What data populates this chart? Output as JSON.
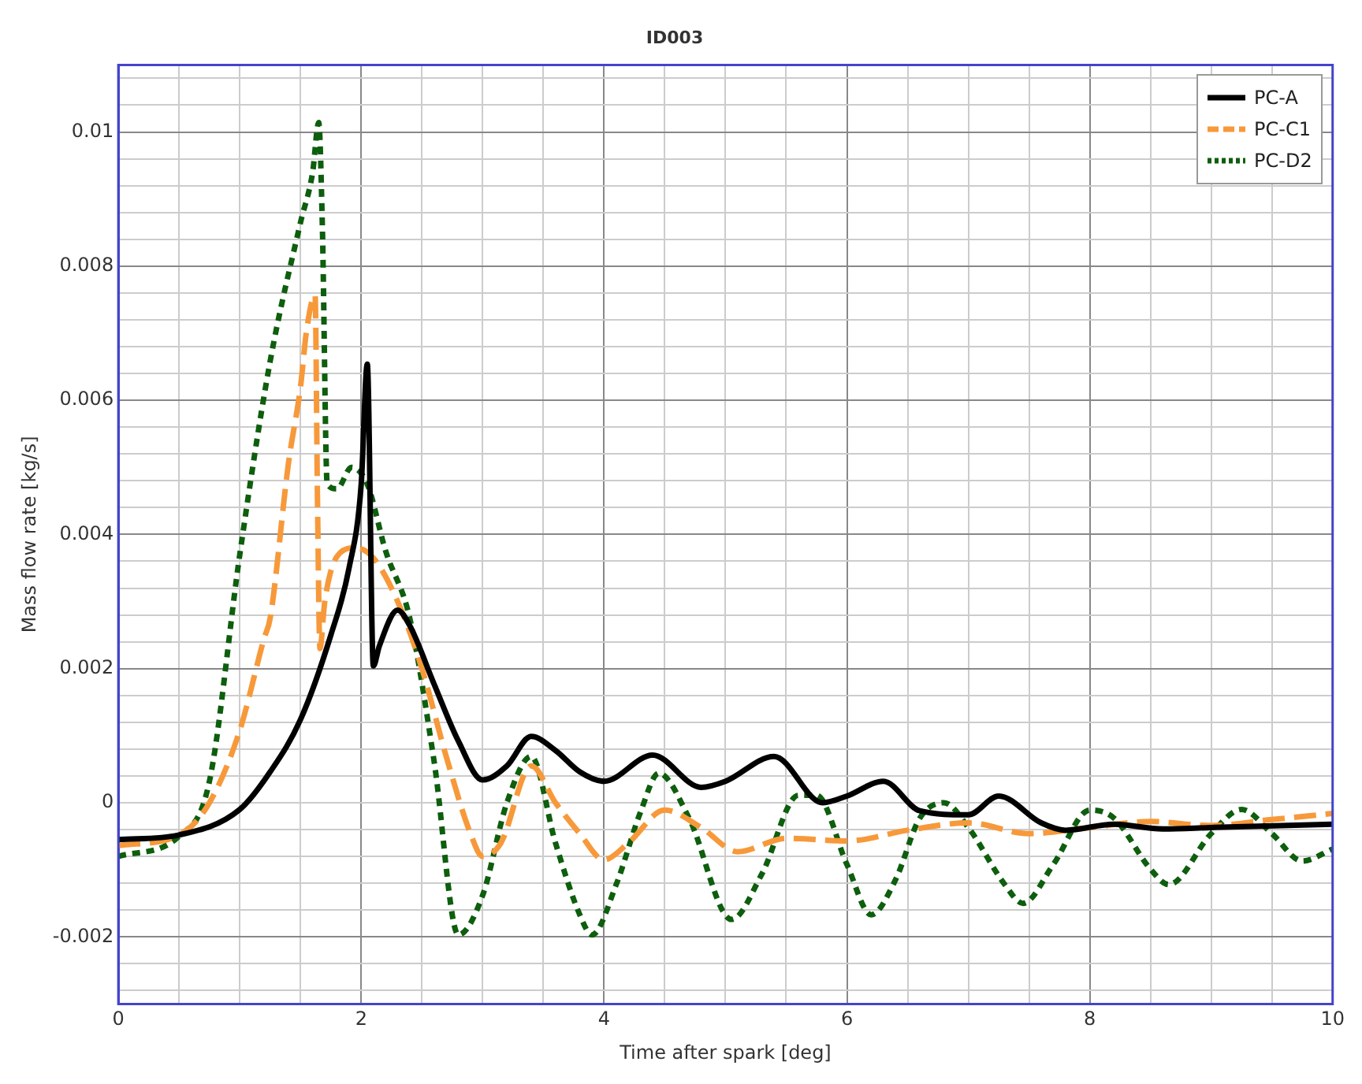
{
  "chart_data": {
    "type": "line",
    "title": "ID003",
    "xlabel": "Time after spark [deg]",
    "ylabel": "Mass flow rate [kg/s]",
    "xlim": [
      0,
      10
    ],
    "xticks": [
      0,
      {
        "value": 0.5,
        "label": null
      },
      {
        "value": 1,
        "label": null
      },
      {
        "value": 1.5,
        "label": null
      },
      2,
      {
        "value": 2.5,
        "label": null
      },
      {
        "value": 3,
        "label": null
      },
      {
        "value": 3.5,
        "label": null
      },
      4,
      {
        "value": 4.5,
        "label": null
      },
      {
        "value": 5,
        "label": null
      },
      {
        "value": 5.5,
        "label": null
      },
      6,
      {
        "value": 6.5,
        "label": null
      },
      {
        "value": 7,
        "label": null
      },
      {
        "value": 7.5,
        "label": null
      },
      8,
      {
        "value": 8.5,
        "label": null
      },
      {
        "value": 9,
        "label": null
      },
      {
        "value": 9.5,
        "label": null
      },
      10
    ],
    "ylim": [
      -0.003,
      0.011
    ],
    "yticks": [
      {
        "value": -0.0028,
        "label": null
      },
      {
        "value": -0.0024,
        "label": null
      },
      -0.002,
      {
        "value": -0.0016,
        "label": null
      },
      {
        "value": -0.0012,
        "label": null
      },
      {
        "value": -0.0008,
        "label": null
      },
      {
        "value": -0.0004,
        "label": null
      },
      0,
      {
        "value": 0.0004,
        "label": null
      },
      {
        "value": 0.0008,
        "label": null
      },
      {
        "value": 0.0012,
        "label": null
      },
      {
        "value": 0.0016,
        "label": null
      },
      0.002,
      {
        "value": 0.0024,
        "label": null
      },
      {
        "value": 0.0028,
        "label": null
      },
      {
        "value": 0.0032,
        "label": null
      },
      {
        "value": 0.0036,
        "label": null
      },
      0.004,
      {
        "value": 0.0044,
        "label": null
      },
      {
        "value": 0.0048,
        "label": null
      },
      {
        "value": 0.0052,
        "label": null
      },
      {
        "value": 0.0056,
        "label": null
      },
      0.006,
      {
        "value": 0.0064,
        "label": null
      },
      {
        "value": 0.0068,
        "label": null
      },
      {
        "value": 0.0072,
        "label": null
      },
      {
        "value": 0.0076,
        "label": null
      },
      0.008,
      {
        "value": 0.0084,
        "label": null
      },
      {
        "value": 0.0088,
        "label": null
      },
      {
        "value": 0.0092,
        "label": null
      },
      {
        "value": 0.0096,
        "label": null
      },
      0.01,
      {
        "value": 0.0104,
        "label": null
      },
      {
        "value": 0.0108,
        "label": null
      }
    ],
    "grid": true,
    "legend": "top right",
    "marker": "none",
    "series": [
      {
        "name": "PC-A",
        "color": "#000000",
        "line_style": "solid",
        "x": [
          0,
          0.5,
          1,
          1.25,
          1.5,
          1.75,
          1.9,
          2,
          2.05,
          2.1,
          2.15,
          2.3,
          2.4,
          2.6,
          2.8,
          3,
          3.2,
          3.4,
          3.6,
          3.8,
          4,
          4.4,
          4.8,
          5,
          5.4,
          5.8,
          6,
          6.3,
          6.6,
          7,
          7.25,
          7.6,
          7.8,
          8.2,
          8.6,
          9,
          10
        ],
        "values": [
          -0.00055,
          -0.00048,
          -0.0001,
          0.00046,
          0.00124,
          0.0025,
          0.0035,
          0.00475,
          0.00654,
          0.00204,
          0.00234,
          0.00287,
          0.00264,
          0.00177,
          0.00092,
          0.00034,
          0.00055,
          0.00099,
          0.00078,
          0.00046,
          0.00032,
          0.00071,
          0.00023,
          0.00032,
          0.00069,
          0,
          0.0001,
          0.00032,
          -0.00012,
          -0.00018,
          0.0001,
          -0.0003,
          -0.00041,
          -0.00032,
          -0.00039,
          -0.00037,
          -0.00032
        ]
      },
      {
        "name": "PC-C1",
        "color": "#f7993a",
        "line_style": "dashed",
        "x": [
          0,
          0.5,
          0.75,
          1,
          1.2,
          1.25,
          1.4,
          1.5,
          1.55,
          1.62,
          1.64,
          1.66,
          1.7,
          1.8,
          1.95,
          2.1,
          2.3,
          2.5,
          2.7,
          2.9,
          3,
          3.15,
          3.4,
          3.6,
          3.8,
          4,
          4.2,
          4.5,
          4.8,
          5.1,
          5.5,
          6,
          6.5,
          7,
          7.5,
          8,
          8.5,
          9,
          9.5,
          10
        ],
        "values": [
          -0.00064,
          -0.00048,
          0,
          0.00108,
          0.00245,
          0.00275,
          0.00505,
          0.0062,
          0.00704,
          0.00757,
          0.0045,
          0.0023,
          0.003,
          0.00367,
          0.0038,
          0.00365,
          0.003,
          0.002,
          0.00069,
          -0.00046,
          -0.0008,
          -0.0006,
          0.00055,
          0,
          -0.00046,
          -0.00085,
          -0.0006,
          -0.00011,
          -0.00037,
          -0.00073,
          -0.00053,
          -0.00057,
          -0.00041,
          -0.0003,
          -0.00046,
          -0.00037,
          -0.00028,
          -0.00034,
          -0.00025,
          -0.00016
        ]
      },
      {
        "name": "PC-D2",
        "color": "#0d5e0d",
        "line_style": "dotted",
        "x": [
          0,
          0.5,
          0.75,
          1,
          1.25,
          1.5,
          1.6,
          1.65,
          1.68,
          1.72,
          1.8,
          1.92,
          2.05,
          2.2,
          2.4,
          2.6,
          2.8,
          3,
          3.2,
          3.4,
          3.6,
          3.8,
          3.9,
          4.1,
          4.3,
          4.45,
          4.7,
          5.05,
          5.3,
          5.6,
          5.75,
          6,
          6.2,
          6.4,
          6.6,
          6.8,
          7,
          7.3,
          7.45,
          7.7,
          8,
          8.2,
          8.5,
          8.65,
          9,
          9.25,
          9.5,
          9.75,
          10
        ],
        "values": [
          -0.0008,
          -0.0005,
          0.00032,
          0.0037,
          0.00658,
          0.00865,
          0.0094,
          0.01014,
          0.0086,
          0.00475,
          0.00468,
          0.005,
          0.00475,
          0.00376,
          0.00275,
          0.00062,
          -0.00197,
          -0.00138,
          0,
          0.00069,
          -0.0006,
          -0.00167,
          -0.00197,
          -0.00122,
          -0.00014,
          0.00044,
          -0.00023,
          -0.00174,
          -0.00106,
          0.00011,
          0.00011,
          -0.00092,
          -0.00167,
          -0.00115,
          -0.00023,
          0,
          -0.00037,
          -0.00122,
          -0.0015,
          -0.00092,
          -0.00011,
          -0.00023,
          -0.00099,
          -0.00122,
          -0.00046,
          -0.0001,
          -0.00046,
          -0.00087,
          -0.00069
        ]
      }
    ]
  }
}
